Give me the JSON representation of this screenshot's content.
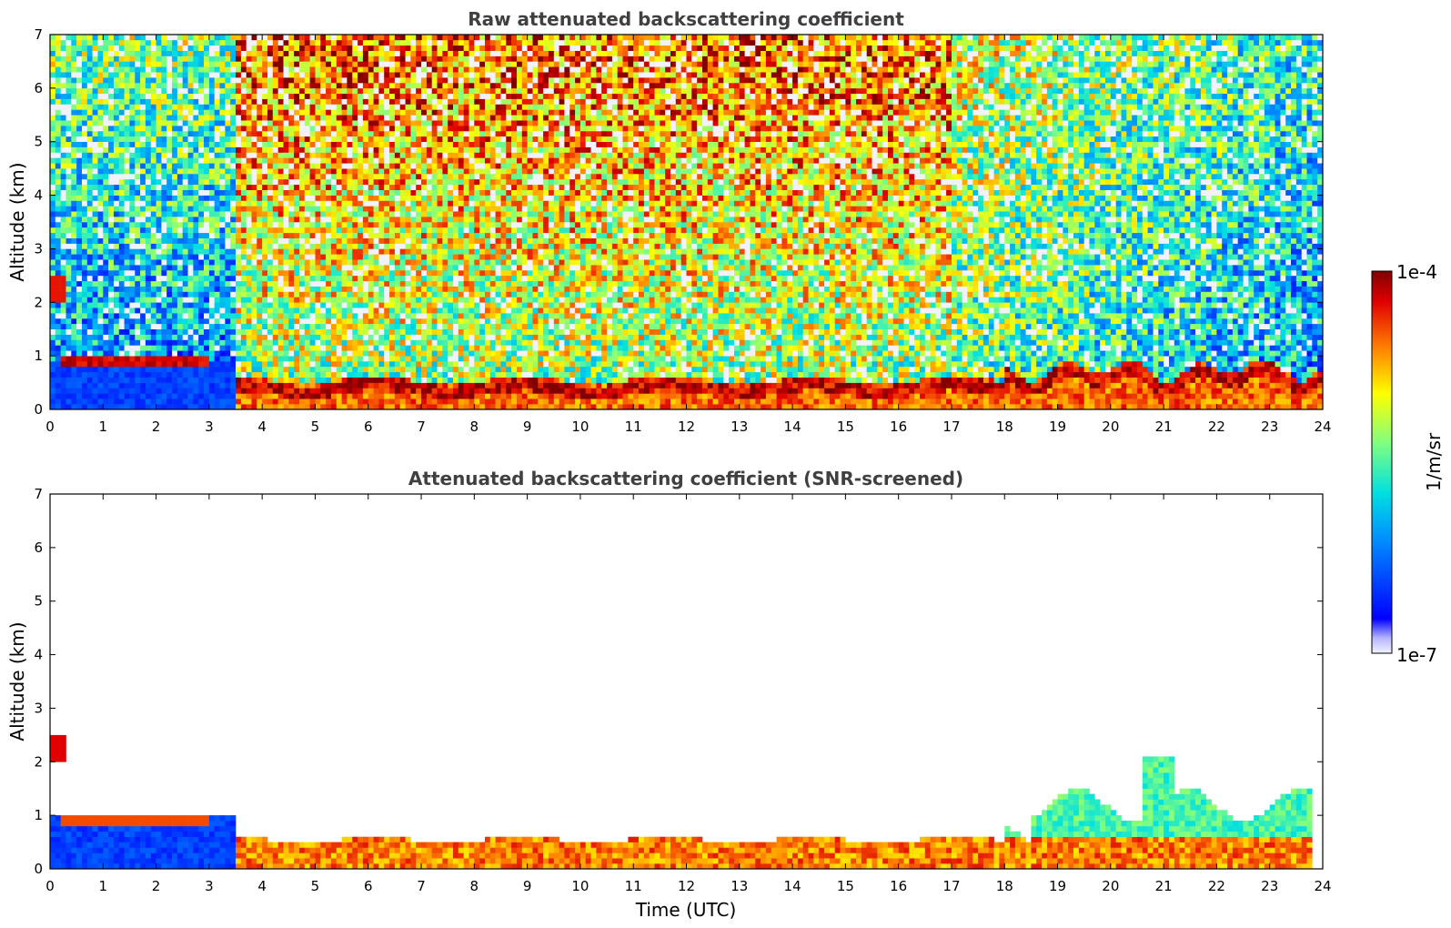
{
  "chart_data": [
    {
      "type": "heatmap",
      "title": "Raw attenuated backscattering coefficient",
      "xlabel": "",
      "ylabel": "Altitude (km)",
      "xlim": [
        0,
        24
      ],
      "ylim": [
        0,
        7
      ],
      "x_ticks": [
        "0",
        "1",
        "2",
        "3",
        "4",
        "5",
        "6",
        "7",
        "8",
        "9",
        "10",
        "11",
        "12",
        "13",
        "14",
        "15",
        "16",
        "17",
        "18",
        "19",
        "20",
        "21",
        "22",
        "23",
        "24"
      ],
      "y_ticks": [
        "0",
        "1",
        "2",
        "3",
        "4",
        "5",
        "6",
        "7"
      ],
      "features": [
        {
          "label": "surface aerosol layer",
          "x": [
            0,
            3.5
          ],
          "y": [
            0,
            0.9
          ],
          "level": "low (blue)"
        },
        {
          "label": "residual layer top",
          "x": [
            0.2,
            3.0
          ],
          "y": [
            0.8,
            1.0
          ],
          "level": "high (dark red)"
        },
        {
          "label": "elevated layer",
          "x": [
            0,
            0.3
          ],
          "y": [
            2.0,
            2.5
          ],
          "level": "high (red)"
        },
        {
          "label": "boundary layer",
          "x": [
            3.5,
            23.8
          ],
          "y": [
            0.1,
            0.6
          ],
          "level": "high (orange-red)"
        },
        {
          "label": "free troposphere noise",
          "x": [
            3.5,
            17
          ],
          "y": [
            3,
            7
          ],
          "level": "high noise (red/yellow)"
        },
        {
          "label": "free troposphere noise",
          "x": [
            0,
            3.5
          ],
          "y": [
            1,
            7
          ],
          "level": "moderate noise (blue/green)"
        }
      ]
    },
    {
      "type": "heatmap",
      "title": "Attenuated backscattering coefficient (SNR-screened)",
      "xlabel": "Time (UTC)",
      "ylabel": "Altitude (km)",
      "xlim": [
        0,
        24
      ],
      "ylim": [
        0,
        7
      ],
      "x_ticks": [
        "0",
        "1",
        "2",
        "3",
        "4",
        "5",
        "6",
        "7",
        "8",
        "9",
        "10",
        "11",
        "12",
        "13",
        "14",
        "15",
        "16",
        "17",
        "18",
        "19",
        "20",
        "21",
        "22",
        "23",
        "24"
      ],
      "y_ticks": [
        "0",
        "1",
        "2",
        "3",
        "4",
        "5",
        "6",
        "7"
      ],
      "features": [
        {
          "label": "surface aerosol layer",
          "x": [
            0,
            3.5
          ],
          "y": [
            0,
            1.0
          ],
          "level": "low (blue)"
        },
        {
          "label": "boundary layer",
          "x": [
            3.5,
            23.8
          ],
          "y": [
            0,
            0.8
          ],
          "level": "high (orange-red)"
        },
        {
          "label": "cloud-top / mixing region",
          "x": [
            18.5,
            23.8
          ],
          "y": [
            0.5,
            1.6
          ],
          "level": "moderate (cyan-green)"
        },
        {
          "label": "elevated plume",
          "x": [
            20.5,
            21.2
          ],
          "y": [
            0.8,
            2.2
          ],
          "level": "moderate (cyan-green)"
        }
      ]
    }
  ],
  "colorbar": {
    "max_label": "1e-4",
    "min_label": "1e-7",
    "units": "1/m/sr",
    "scale": "log",
    "colormap": "jet"
  }
}
